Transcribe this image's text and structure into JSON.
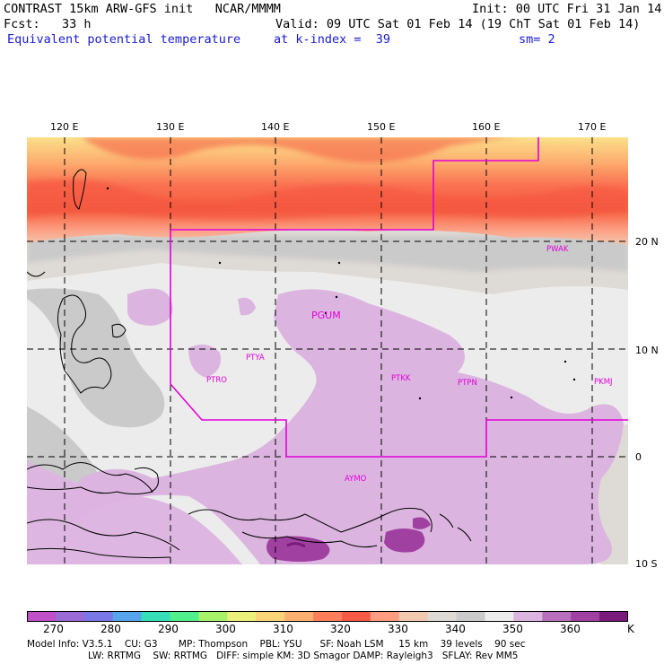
{
  "header": {
    "title": "CONTRAST 15km ARW-GFS init   NCAR/MMMM",
    "init": "Init: 00 UTC Fri 31 Jan 14",
    "fcst": "Fcst:   33 h",
    "valid": "Valid: 09 UTC Sat 01 Feb 14 (19 ChT Sat 01 Feb 14)",
    "field": "Equivalent potential temperature",
    "level": "at k-index =  39",
    "smooth": "sm= 2"
  },
  "map": {
    "lon_labels": [
      "120 E",
      "130 E",
      "140 E",
      "150 E",
      "160 E",
      "170 E"
    ],
    "lat_labels": [
      "20 N",
      "10 N",
      "0",
      "10 S"
    ],
    "stations": [
      "PGUM",
      "PTYA",
      "PTRO",
      "PTKK",
      "PTPN",
      "PKMJ",
      "PWAK",
      "AYMO"
    ]
  },
  "colorbar": {
    "colors": [
      "#c050c8",
      "#9a6ad6",
      "#7a78e8",
      "#55a4ec",
      "#35e0b8",
      "#52f08c",
      "#a8f26a",
      "#ecf07c",
      "#fcd478",
      "#fcb070",
      "#fc7e5a",
      "#f85a48",
      "#fc9c80",
      "#f2c8b0",
      "#dedad6",
      "#cacaca",
      "#ececec",
      "#dcb4e0",
      "#b870be",
      "#a040a0",
      "#7a1a7a"
    ],
    "labels": [
      "270",
      "280",
      "290",
      "300",
      "310",
      "320",
      "330",
      "340",
      "350",
      "360",
      "K"
    ]
  },
  "footer": {
    "line1": "Model Info: V3.5.1    CU: G3       MP: Thompson    PBL: YSU      SF: Noah LSM     15 km    39 levels    90 sec",
    "line2": "LW: RRTMG    SW: RRTMG   DIFF: simple KM: 3D Smagor DAMP: Rayleigh3   SFLAY: Rev MM5"
  }
}
